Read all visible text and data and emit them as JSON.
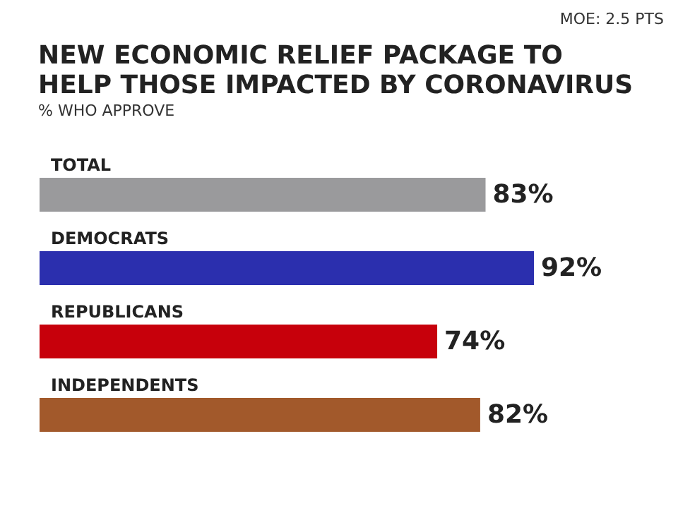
{
  "chart_data": {
    "type": "bar",
    "orientation": "horizontal",
    "title": "NEW ECONOMIC RELIEF PACKAGE TO HELP THOSE IMPACTED BY CORONAVIRUS",
    "subtitle": "% WHO APPROVE",
    "annotations": [
      "MOE: 2.5 PTS"
    ],
    "categories": [
      "TOTAL",
      "DEMOCRATS",
      "REPUBLICANS",
      "INDEPENDENTS"
    ],
    "values": [
      83,
      92,
      74,
      82
    ],
    "colors": [
      "#9a9a9c",
      "#2b2fae",
      "#c7000b",
      "#a2592b"
    ],
    "value_labels": [
      "83%",
      "92%",
      "74%",
      "82%"
    ]
  }
}
